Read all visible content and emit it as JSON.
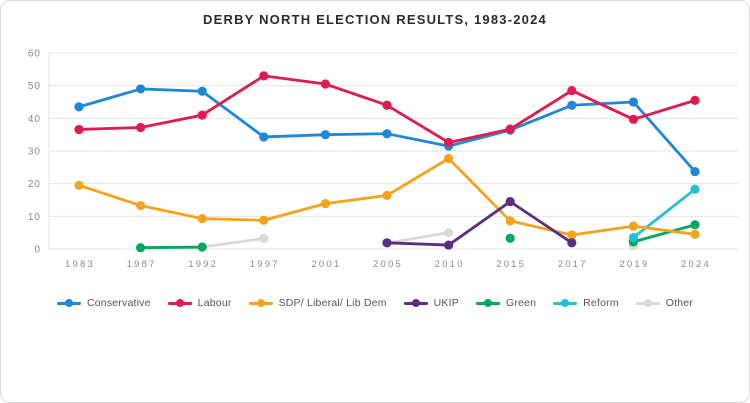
{
  "title": "DERBY NORTH ELECTION RESULTS, 1983-2024",
  "chart_data": {
    "type": "line",
    "title": "DERBY NORTH ELECTION RESULTS, 1983-2024",
    "xlabel": "",
    "ylabel": "",
    "ylim": [
      0,
      60
    ],
    "yticks": [
      0,
      10,
      20,
      30,
      40,
      50,
      60
    ],
    "grid": "horizontal",
    "legend_position": "bottom",
    "categories": [
      "1983",
      "1987",
      "1992",
      "1997",
      "2001",
      "2005",
      "2010",
      "2015",
      "2017",
      "2019",
      "2024"
    ],
    "series": [
      {
        "name": "Conservative",
        "color": "#1e88d8",
        "values": [
          43.5,
          49,
          48.3,
          34.3,
          35,
          35.3,
          31.5,
          36.4,
          44,
          45,
          23.7
        ]
      },
      {
        "name": "Labour",
        "color": "#e11a50",
        "values": [
          36.6,
          37.2,
          41,
          53,
          50.5,
          44,
          32.6,
          36.7,
          48.5,
          39.7,
          45.5
        ]
      },
      {
        "name": "SDP/ Liberal/ Lib Dem",
        "color": "#f5a31c",
        "values": [
          19.5,
          13.3,
          9.3,
          8.8,
          13.9,
          16.4,
          27.7,
          8.6,
          4.3,
          7,
          4.5
        ]
      },
      {
        "name": "UKIP",
        "color": "#5c2d82",
        "values": [
          null,
          null,
          null,
          null,
          null,
          1.9,
          1.2,
          14.5,
          1.9,
          null,
          null
        ]
      },
      {
        "name": "Green",
        "color": "#00a85e",
        "values": [
          null,
          0.4,
          0.6,
          null,
          null,
          null,
          null,
          3.3,
          null,
          2.2,
          7.4
        ]
      },
      {
        "name": "Reform",
        "color": "#23bfd4",
        "values": [
          null,
          null,
          null,
          null,
          null,
          null,
          null,
          null,
          null,
          3.5,
          18.3
        ]
      },
      {
        "name": "Other",
        "color": "#d9d9d9",
        "values": [
          null,
          null,
          0.6,
          3.2,
          null,
          1.8,
          5,
          null,
          null,
          1,
          null
        ]
      }
    ],
    "colors": {
      "conservative": "#1e88d8",
      "labour": "#e11a50",
      "sdp_liberal_libdem": "#f5a31c",
      "ukip": "#5c2d82",
      "green": "#00a85e",
      "reform": "#23bfd4",
      "other": "#d9d9d9",
      "gridline": "#e6e6e6",
      "axis_text": "#8a8a8a"
    }
  }
}
